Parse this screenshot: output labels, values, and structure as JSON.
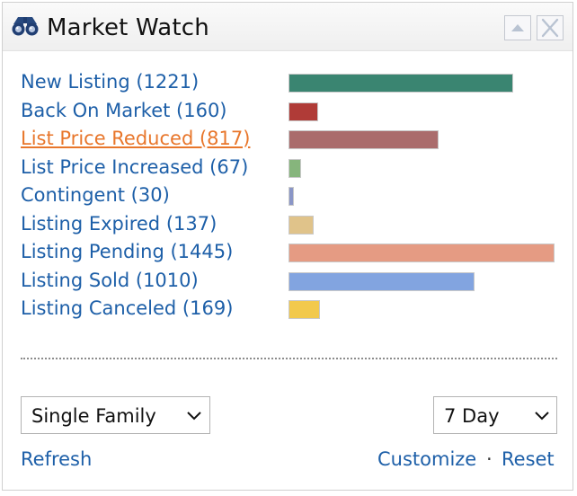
{
  "header": {
    "title": "Market Watch",
    "icon": "binoculars-icon",
    "collapse_icon": "triangle-up-icon",
    "close_icon": "close-icon"
  },
  "rows": [
    {
      "label": "New Listing (1221)",
      "count": 1221,
      "color": "#3a8571",
      "active": false
    },
    {
      "label": "Back On Market (160)",
      "count": 160,
      "color": "#b03b37",
      "active": false
    },
    {
      "label": "List Price Reduced (817)",
      "count": 817,
      "color": "#aa6c6c",
      "active": true
    },
    {
      "label": "List Price Increased (67)",
      "count": 67,
      "color": "#86b57c",
      "active": false
    },
    {
      "label": "Contingent (30)",
      "count": 30,
      "color": "#8a96c7",
      "active": false
    },
    {
      "label": "Listing Expired (137)",
      "count": 137,
      "color": "#e0c38a",
      "active": false
    },
    {
      "label": "Listing Pending (1445)",
      "count": 1445,
      "color": "#e59b83",
      "active": false
    },
    {
      "label": "Listing Sold (1010)",
      "count": 1010,
      "color": "#82a4e0",
      "active": false
    },
    {
      "label": "Listing Canceled (169)",
      "count": 169,
      "color": "#f2c94c",
      "active": false
    }
  ],
  "bar_scale_max": 1445,
  "filters": {
    "property_type": "Single Family",
    "period": "7 Day"
  },
  "footer": {
    "refresh": "Refresh",
    "customize": "Customize",
    "separator": "·",
    "reset": "Reset"
  },
  "colors": {
    "link": "#1d5fa8",
    "active_link": "#e8762b"
  }
}
